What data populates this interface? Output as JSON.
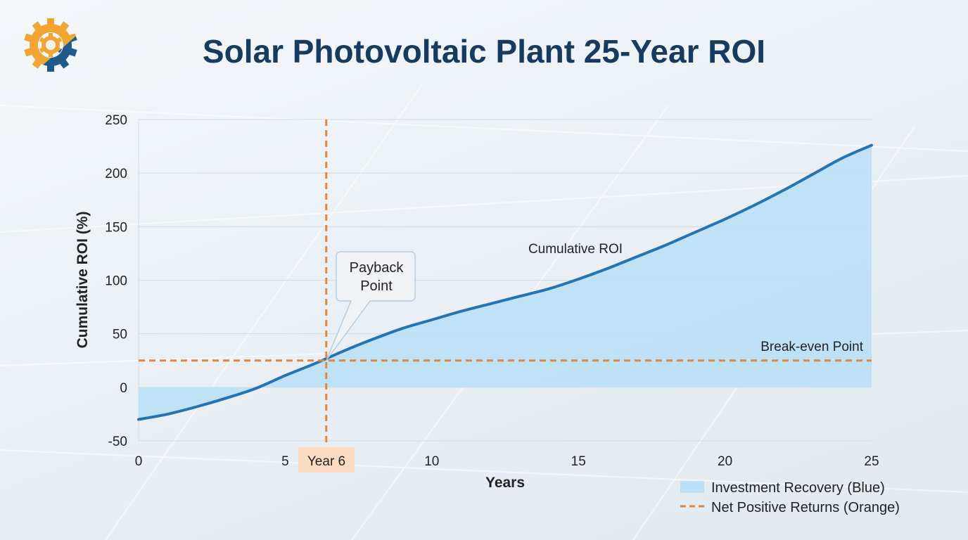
{
  "title": "Solar Photovoltaic Plant 25-Year ROI",
  "logo": {
    "icon": "gear-icon",
    "colors": [
      "#f2a531",
      "#1f5a8a"
    ]
  },
  "chart_data": {
    "type": "area",
    "title": "Solar Photovoltaic Plant 25-Year ROI",
    "xlabel": "Years",
    "ylabel": "Cumulative ROI (%)",
    "xlim": [
      0,
      25
    ],
    "ylim": [
      -50,
      250
    ],
    "xticks": [
      0,
      5,
      10,
      15,
      20,
      25
    ],
    "yticks": [
      -50,
      0,
      50,
      100,
      150,
      200,
      250
    ],
    "grid": true,
    "series": [
      {
        "name": "Cumulative ROI",
        "color": "#2474b5",
        "fill": "#bde0f6",
        "x": [
          0,
          1,
          2,
          3,
          4,
          5,
          6,
          7,
          8,
          9,
          10,
          11,
          12,
          13,
          14,
          15,
          16,
          17,
          18,
          19,
          20,
          21,
          22,
          23,
          24,
          25
        ],
        "y": [
          -30,
          -25,
          -18,
          -10,
          -1,
          11,
          22,
          34,
          45,
          55,
          63,
          71,
          78,
          85,
          92,
          101,
          111,
          122,
          133,
          145,
          157,
          170,
          184,
          199,
          214,
          226
        ]
      }
    ],
    "annotations": {
      "series_label": "Cumulative ROI",
      "break_even": {
        "label": "Break-even Point",
        "y": 25,
        "color": "#e0883a"
      },
      "payback": {
        "label_line1": "Payback",
        "label_line2": "Point",
        "x": 6.4,
        "y": 25,
        "tick_label": "Year 6"
      }
    },
    "legend": {
      "placement": "bottom-right",
      "items": [
        {
          "label": "Investment Recovery (Blue)",
          "type": "area",
          "color": "#bde0f6"
        },
        {
          "label": "Net Positive Returns (Orange)",
          "type": "dashed-line",
          "color": "#e0883a"
        }
      ]
    }
  }
}
